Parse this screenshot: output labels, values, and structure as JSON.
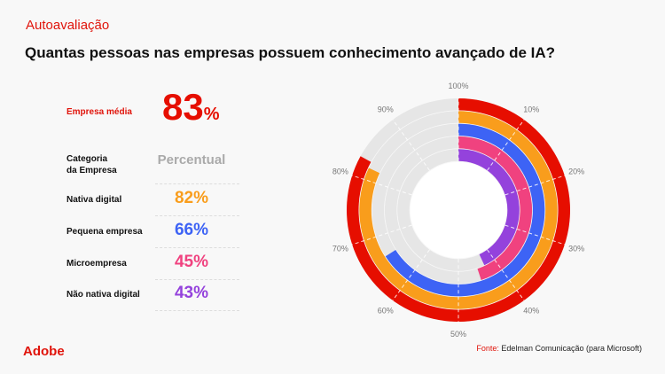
{
  "header": {
    "kicker": "Autoavaliação",
    "title": "Quantas pessoas nas empresas possuem conhecimento avançado de IA?"
  },
  "summary": {
    "label": "Empresa média",
    "value": "83",
    "unit": "%"
  },
  "table": {
    "col_category": "Categoria da Empresa",
    "col_category_line1": "Categoria",
    "col_category_line2": "da Empresa",
    "col_value": "Percentual",
    "rows": [
      {
        "label": "Nativa digital",
        "value": "82%",
        "color": "#f99d1c"
      },
      {
        "label": "Pequena empresa",
        "value": "66%",
        "color": "#3d63f5"
      },
      {
        "label": "Microempresa",
        "value": "45%",
        "color": "#f0427f"
      },
      {
        "label": "Não nativa digital",
        "value": "43%",
        "color": "#9442dc"
      }
    ]
  },
  "chart_data": {
    "type": "radial-bar",
    "range": [
      0,
      100
    ],
    "tick_labels": [
      "100%",
      "10%",
      "20%",
      "30%",
      "40%",
      "50%",
      "60%",
      "70%",
      "80%",
      "90%"
    ],
    "track_color": "#e6e6e6",
    "series": [
      {
        "name": "Empresa média",
        "value": 83,
        "color": "#e60e00"
      },
      {
        "name": "Nativa digital",
        "value": 82,
        "color": "#f99d1c"
      },
      {
        "name": "Pequena empresa",
        "value": 66,
        "color": "#3d63f5"
      },
      {
        "name": "Microempresa",
        "value": 45,
        "color": "#f0427f"
      },
      {
        "name": "Não nativa digital",
        "value": 43,
        "color": "#9442dc"
      }
    ]
  },
  "footer": {
    "logo": "Adobe",
    "source_label": "Fonte:",
    "source_text": " Edelman Comunicação (para Microsoft)"
  }
}
